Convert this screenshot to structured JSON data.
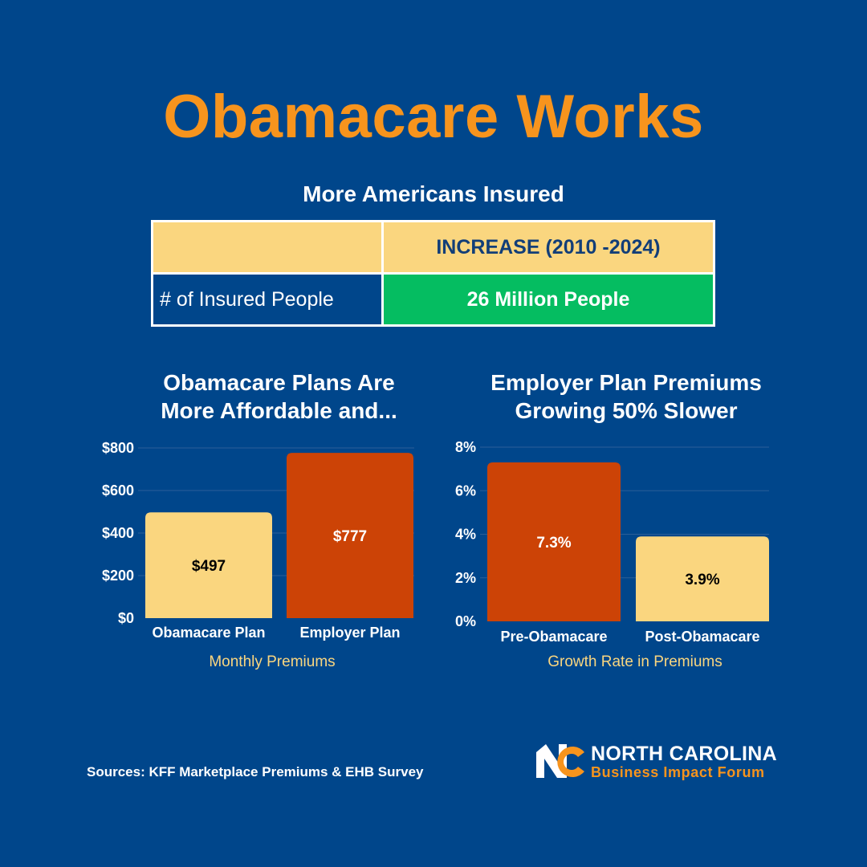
{
  "title": "Obamacare Works",
  "table": {
    "title": "More Americans Insured",
    "header": "INCREASE (2010 -2024)",
    "row_label": "# of Insured People",
    "row_value": "26 Million People"
  },
  "chart_data": [
    {
      "type": "bar",
      "title_line1": "Obamacare Plans Are",
      "title_line2": "More Affordable and...",
      "categories": [
        "Obamacare Plan",
        "Employer Plan"
      ],
      "values": [
        497,
        777
      ],
      "data_labels": [
        "$497",
        "$777"
      ],
      "colors": [
        "#fad67f",
        "#cc4306"
      ],
      "label_colors": [
        "#000000",
        "#ffffff"
      ],
      "xlabel": "Monthly Premiums",
      "ylim": [
        0,
        800
      ],
      "yticks": [
        0,
        200,
        400,
        600,
        800
      ],
      "ytick_labels": [
        "$0",
        "$200",
        "$400",
        "$600",
        "$800"
      ],
      "grid": true
    },
    {
      "type": "bar",
      "title_line1": "Employer Plan Premiums",
      "title_line2": "Growing 50% Slower",
      "categories": [
        "Pre-Obamacare",
        "Post-Obamacare"
      ],
      "values": [
        7.3,
        3.9
      ],
      "data_labels": [
        "7.3%",
        "3.9%"
      ],
      "colors": [
        "#cc4306",
        "#fad67f"
      ],
      "label_colors": [
        "#ffffff",
        "#000000"
      ],
      "xlabel": "Growth Rate in Premiums",
      "ylim": [
        0,
        8
      ],
      "yticks": [
        0,
        2,
        4,
        6,
        8
      ],
      "ytick_labels": [
        "0%",
        "2%",
        "4%",
        "6%",
        "8%"
      ],
      "grid": true
    }
  ],
  "footer": {
    "sources": "Sources: KFF Marketplace Premiums &  EHB Survey",
    "logo_name": "NORTH CAROLINA",
    "logo_sub": "Business Impact Forum"
  },
  "colors": {
    "background": "#00468b",
    "accent": "#f7941d",
    "light_bar": "#fad67f",
    "dark_bar": "#cc4306",
    "green": "#05bd61"
  }
}
